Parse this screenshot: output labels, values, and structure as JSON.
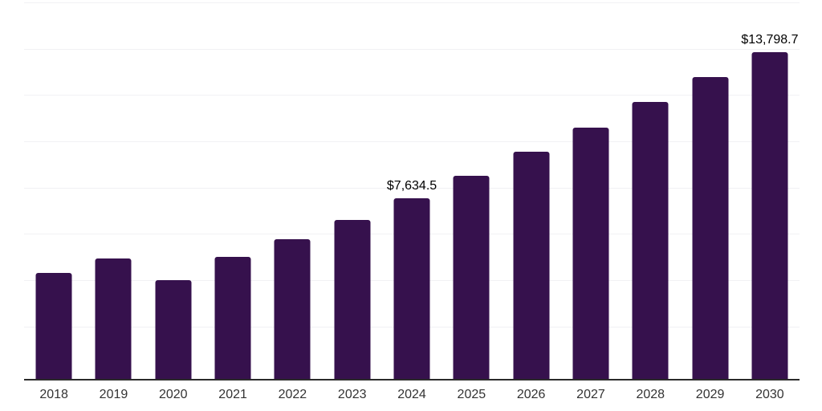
{
  "chart_data": {
    "type": "bar",
    "title": "",
    "xlabel": "",
    "ylabel": "",
    "categories": [
      "2018",
      "2019",
      "2020",
      "2021",
      "2022",
      "2023",
      "2024",
      "2025",
      "2026",
      "2027",
      "2028",
      "2029",
      "2030"
    ],
    "values": [
      4480,
      5090,
      4160,
      5140,
      5890,
      6730,
      7634.5,
      8590,
      9610,
      10620,
      11690,
      12740,
      13798.7
    ],
    "value_labels_visible": [
      {
        "category": "2024",
        "text": "$7,634.5"
      },
      {
        "category": "2030",
        "text": "$13,798.7"
      }
    ],
    "ylim": [
      0,
      15900
    ],
    "grid": "horizontal",
    "legend": "none"
  },
  "style": {
    "bar_color": "#36114D",
    "axis_line_color": "#2B2B2B",
    "gridline_color": "#F1F1F4",
    "x_label_color": "#333333",
    "value_label_color": "#000000",
    "background_color": "#FFFFFF"
  }
}
